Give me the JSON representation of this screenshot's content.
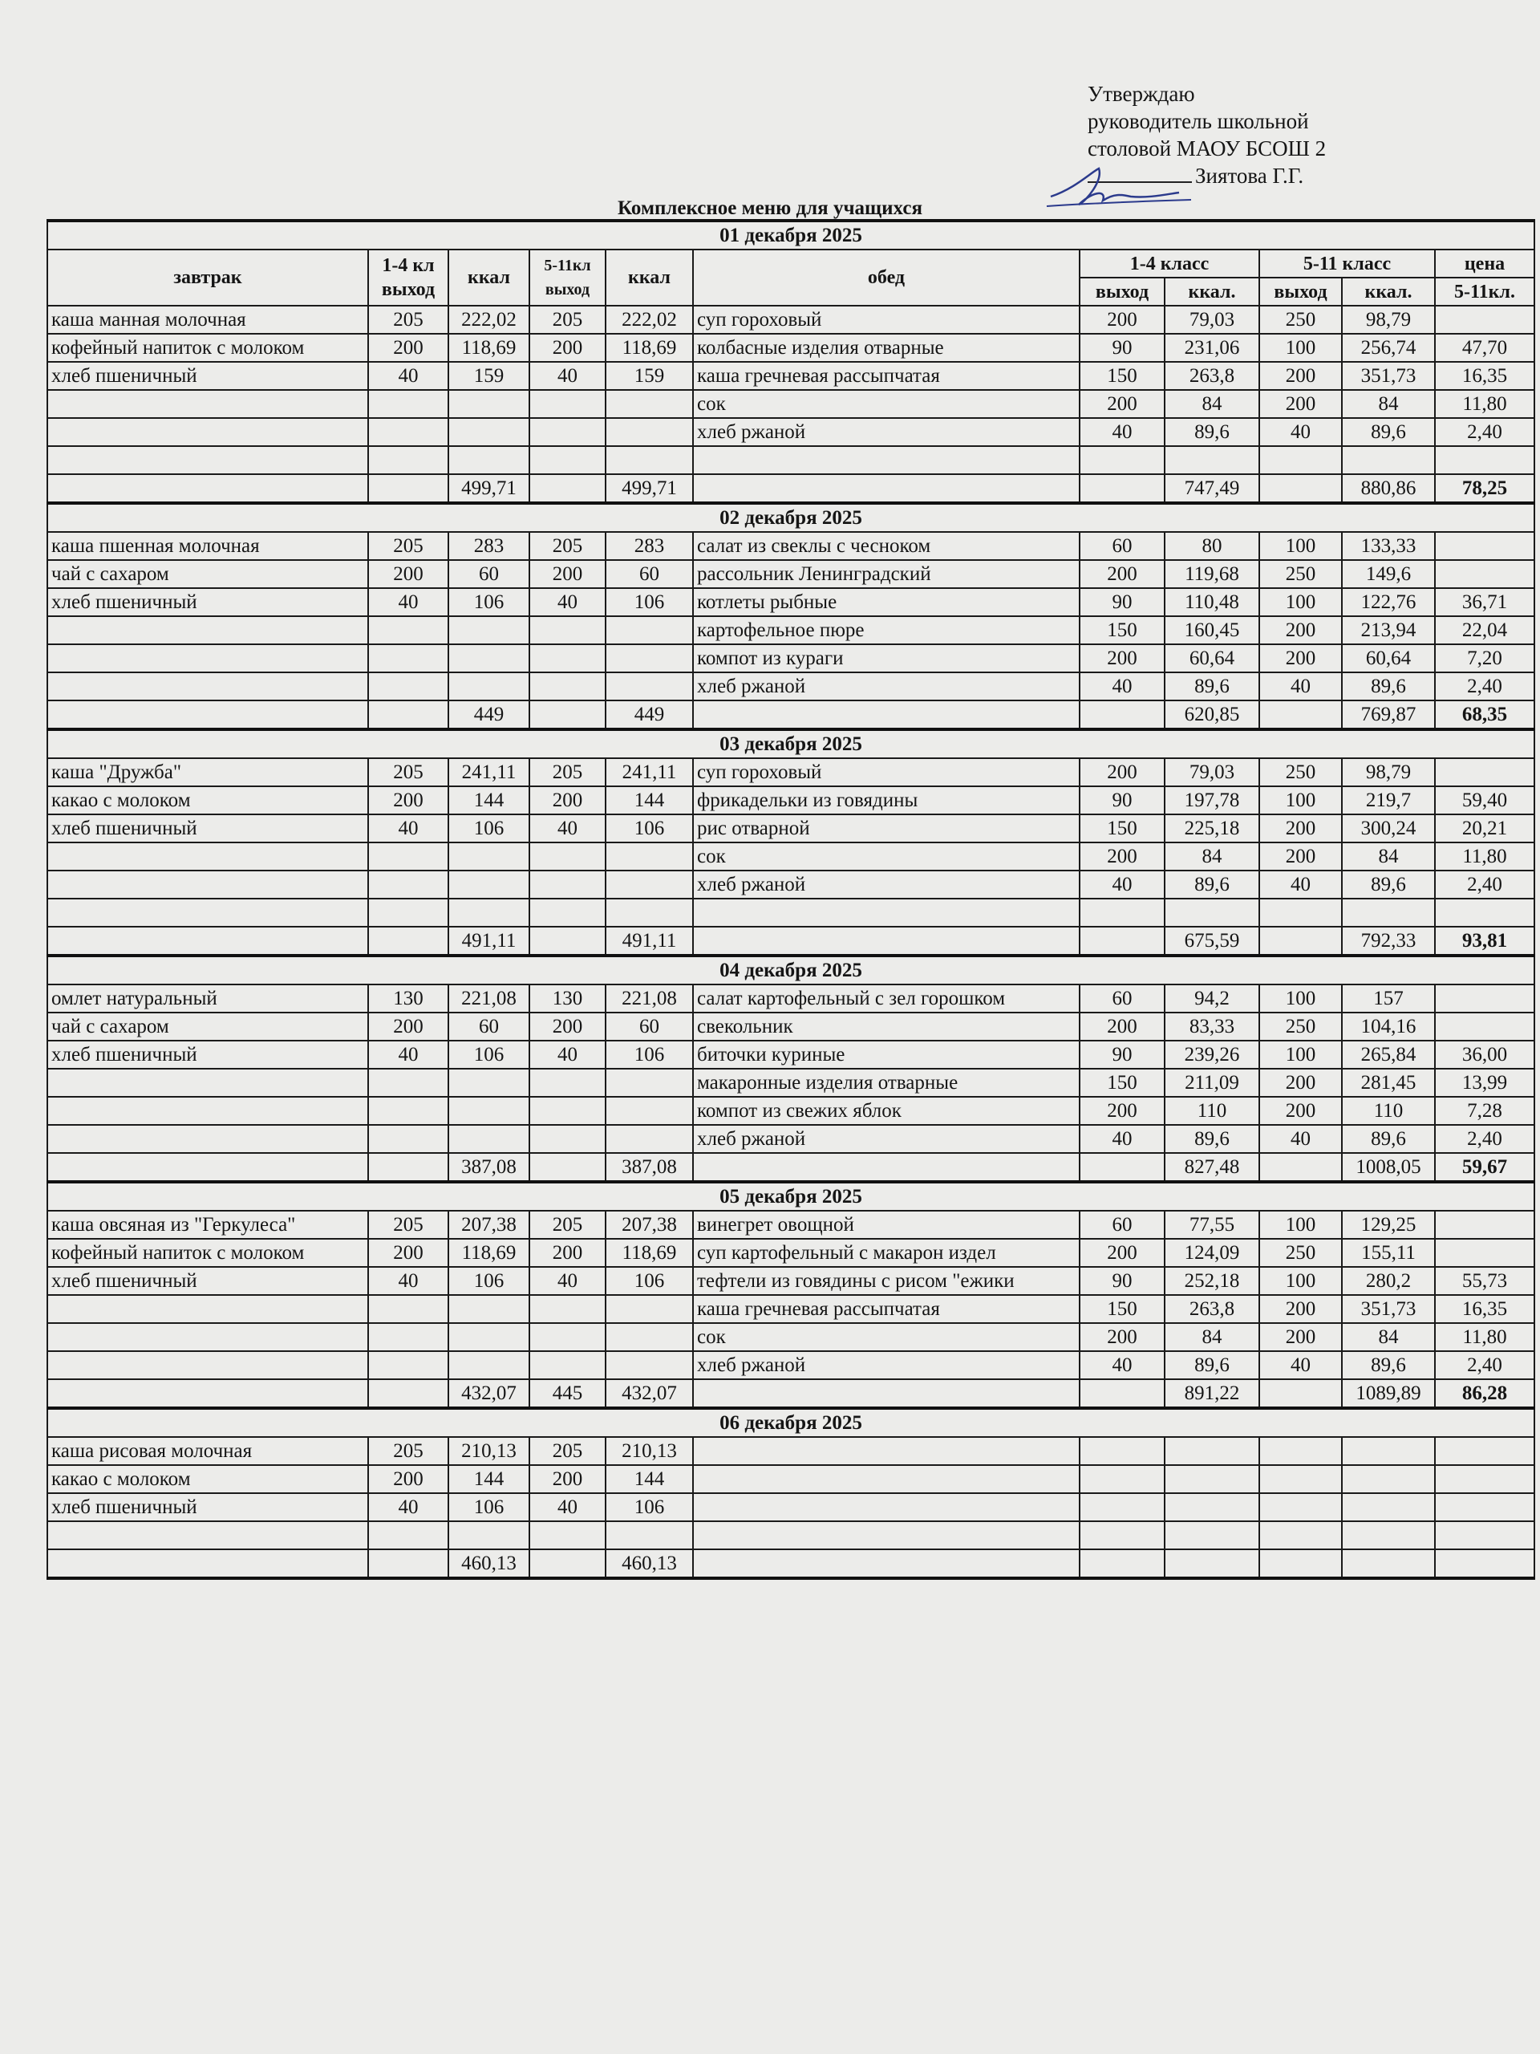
{
  "approval": {
    "line1": "Утверждаю",
    "line2": "руководитель школьной",
    "line3": "столовой МАОУ БСОШ 2",
    "name": "Зиятова Г.Г."
  },
  "title": "Комплексное меню для учащихся",
  "header": {
    "breakfast": "завтрак",
    "out_1_4_a": "1-4 кл",
    "out_1_4_b": "выход",
    "kcal_a": "ккал",
    "out_5_11_a": "5-11кл",
    "out_5_11_b": "выход",
    "kcal_b": "ккал",
    "lunch": "обед",
    "grade_1_4": "1-4 класс",
    "grade_5_11": "5-11 класс",
    "price_a": "цена",
    "price_b": "5-11кл.",
    "out": "выход",
    "kcal": "ккал."
  },
  "days": [
    {
      "date": "01 декабря 2025",
      "breakfast": [
        {
          "name": "каша манная молочная",
          "out14": "205",
          "kcal14": "222,02",
          "out511": "205",
          "kcal511": "222,02"
        },
        {
          "name": "кофейный напиток с молоком",
          "out14": "200",
          "kcal14": "118,69",
          "out511": "200",
          "kcal511": "118,69"
        },
        {
          "name": "хлеб пшеничный",
          "out14": "40",
          "kcal14": "159",
          "out511": "40",
          "kcal511": "159"
        }
      ],
      "breakfast_total": {
        "kcal14": "499,71",
        "out511": "",
        "kcal511": "499,71"
      },
      "lunch": [
        {
          "name": "суп гороховый",
          "out14": "200",
          "kcal14": "79,03",
          "out511": "250",
          "kcal511": "98,79",
          "price": ""
        },
        {
          "name": "колбасные изделия отварные",
          "out14": "90",
          "kcal14": "231,06",
          "out511": "100",
          "kcal511": "256,74",
          "price": "47,70"
        },
        {
          "name": "каша гречневая рассыпчатая",
          "out14": "150",
          "kcal14": "263,8",
          "out511": "200",
          "kcal511": "351,73",
          "price": "16,35"
        },
        {
          "name": "сок",
          "out14": "200",
          "kcal14": "84",
          "out511": "200",
          "kcal511": "84",
          "price": "11,80"
        },
        {
          "name": "хлеб ржаной",
          "out14": "40",
          "kcal14": "89,6",
          "out511": "40",
          "kcal511": "89,6",
          "price": "2,40"
        }
      ],
      "lunch_total": {
        "kcal14": "747,49",
        "kcal511": "880,86",
        "price": "78,25"
      }
    },
    {
      "date": "02 декабря 2025",
      "breakfast": [
        {
          "name": "каша пшенная молочная",
          "out14": "205",
          "kcal14": "283",
          "out511": "205",
          "kcal511": "283"
        },
        {
          "name": "чай с сахаром",
          "out14": "200",
          "kcal14": "60",
          "out511": "200",
          "kcal511": "60"
        },
        {
          "name": "хлеб пшеничный",
          "out14": "40",
          "kcal14": "106",
          "out511": "40",
          "kcal511": "106"
        }
      ],
      "breakfast_total": {
        "kcal14": "449",
        "out511": "",
        "kcal511": "449"
      },
      "lunch": [
        {
          "name": "салат из свеклы с чесноком",
          "out14": "60",
          "kcal14": "80",
          "out511": "100",
          "kcal511": "133,33",
          "price": ""
        },
        {
          "name": "рассольник Ленинградский",
          "out14": "200",
          "kcal14": "119,68",
          "out511": "250",
          "kcal511": "149,6",
          "price": ""
        },
        {
          "name": "котлеты рыбные",
          "out14": "90",
          "kcal14": "110,48",
          "out511": "100",
          "kcal511": "122,76",
          "price": "36,71"
        },
        {
          "name": "картофельное пюре",
          "out14": "150",
          "kcal14": "160,45",
          "out511": "200",
          "kcal511": "213,94",
          "price": "22,04"
        },
        {
          "name": "компот из кураги",
          "out14": "200",
          "kcal14": "60,64",
          "out511": "200",
          "kcal511": "60,64",
          "price": "7,20"
        },
        {
          "name": "хлеб ржаной",
          "out14": "40",
          "kcal14": "89,6",
          "out511": "40",
          "kcal511": "89,6",
          "price": "2,40"
        }
      ],
      "lunch_total": {
        "kcal14": "620,85",
        "kcal511": "769,87",
        "price": "68,35"
      }
    },
    {
      "date": "03 декабря 2025",
      "breakfast": [
        {
          "name": "каша \"Дружба\"",
          "out14": "205",
          "kcal14": "241,11",
          "out511": "205",
          "kcal511": "241,11"
        },
        {
          "name": "какао с молоком",
          "out14": "200",
          "kcal14": "144",
          "out511": "200",
          "kcal511": "144"
        },
        {
          "name": "хлеб пшеничный",
          "out14": "40",
          "kcal14": "106",
          "out511": "40",
          "kcal511": "106"
        }
      ],
      "breakfast_total": {
        "kcal14": "491,11",
        "out511": "",
        "kcal511": "491,11"
      },
      "lunch": [
        {
          "name": "суп гороховый",
          "out14": "200",
          "kcal14": "79,03",
          "out511": "250",
          "kcal511": "98,79",
          "price": ""
        },
        {
          "name": "фрикадельки из говядины",
          "out14": "90",
          "kcal14": "197,78",
          "out511": "100",
          "kcal511": "219,7",
          "price": "59,40"
        },
        {
          "name": "рис отварной",
          "out14": "150",
          "kcal14": "225,18",
          "out511": "200",
          "kcal511": "300,24",
          "price": "20,21"
        },
        {
          "name": "сок",
          "out14": "200",
          "kcal14": "84",
          "out511": "200",
          "kcal511": "84",
          "price": "11,80"
        },
        {
          "name": "хлеб ржаной",
          "out14": "40",
          "kcal14": "89,6",
          "out511": "40",
          "kcal511": "89,6",
          "price": "2,40"
        }
      ],
      "lunch_total": {
        "kcal14": "675,59",
        "kcal511": "792,33",
        "price": "93,81"
      }
    },
    {
      "date": "04 декабря 2025",
      "breakfast": [
        {
          "name": "омлет натуральный",
          "out14": "130",
          "kcal14": "221,08",
          "out511": "130",
          "kcal511": "221,08"
        },
        {
          "name": "чай с сахаром",
          "out14": "200",
          "kcal14": "60",
          "out511": "200",
          "kcal511": "60"
        },
        {
          "name": "хлеб пшеничный",
          "out14": "40",
          "kcal14": "106",
          "out511": "40",
          "kcal511": "106"
        }
      ],
      "breakfast_total": {
        "kcal14": "387,08",
        "out511": "",
        "kcal511": "387,08"
      },
      "lunch": [
        {
          "name": "салат картофельный с зел горошком",
          "out14": "60",
          "kcal14": "94,2",
          "out511": "100",
          "kcal511": "157",
          "price": ""
        },
        {
          "name": "свекольник",
          "out14": "200",
          "kcal14": "83,33",
          "out511": "250",
          "kcal511": "104,16",
          "price": ""
        },
        {
          "name": "биточки куриные",
          "out14": "90",
          "kcal14": "239,26",
          "out511": "100",
          "kcal511": "265,84",
          "price": "36,00"
        },
        {
          "name": "макаронные изделия отварные",
          "out14": "150",
          "kcal14": "211,09",
          "out511": "200",
          "kcal511": "281,45",
          "price": "13,99"
        },
        {
          "name": "компот из свежих яблок",
          "out14": "200",
          "kcal14": "110",
          "out511": "200",
          "kcal511": "110",
          "price": "7,28"
        },
        {
          "name": "хлеб ржаной",
          "out14": "40",
          "kcal14": "89,6",
          "out511": "40",
          "kcal511": "89,6",
          "price": "2,40"
        }
      ],
      "lunch_total": {
        "kcal14": "827,48",
        "kcal511": "1008,05",
        "price": "59,67"
      }
    },
    {
      "date": "05 декабря 2025",
      "breakfast": [
        {
          "name": "каша овсяная из \"Геркулеса\"",
          "out14": "205",
          "kcal14": "207,38",
          "out511": "205",
          "kcal511": "207,38"
        },
        {
          "name": "кофейный напиток с молоком",
          "out14": "200",
          "kcal14": "118,69",
          "out511": "200",
          "kcal511": "118,69"
        },
        {
          "name": "хлеб пшеничный",
          "out14": "40",
          "kcal14": "106",
          "out511": "40",
          "kcal511": "106"
        }
      ],
      "breakfast_total": {
        "kcal14": "432,07",
        "out511": "445",
        "kcal511": "432,07"
      },
      "lunch": [
        {
          "name": "винегрет овощной",
          "out14": "60",
          "kcal14": "77,55",
          "out511": "100",
          "kcal511": "129,25",
          "price": ""
        },
        {
          "name": "суп картофельный с макарон издел",
          "out14": "200",
          "kcal14": "124,09",
          "out511": "250",
          "kcal511": "155,11",
          "price": ""
        },
        {
          "name": "тефтели из говядины с рисом \"ежики",
          "out14": "90",
          "kcal14": "252,18",
          "out511": "100",
          "kcal511": "280,2",
          "price": "55,73"
        },
        {
          "name": "каша гречневая рассыпчатая",
          "out14": "150",
          "kcal14": "263,8",
          "out511": "200",
          "kcal511": "351,73",
          "price": "16,35"
        },
        {
          "name": "сок",
          "out14": "200",
          "kcal14": "84",
          "out511": "200",
          "kcal511": "84",
          "price": "11,80"
        },
        {
          "name": "хлеб ржаной",
          "out14": "40",
          "kcal14": "89,6",
          "out511": "40",
          "kcal511": "89,6",
          "price": "2,40"
        }
      ],
      "lunch_total": {
        "kcal14": "891,22",
        "kcal511": "1089,89",
        "price": "86,28"
      }
    },
    {
      "date": "06 декабря 2025",
      "breakfast": [
        {
          "name": "каша рисовая молочная",
          "out14": "205",
          "kcal14": "210,13",
          "out511": "205",
          "kcal511": "210,13"
        },
        {
          "name": "какао с молоком",
          "out14": "200",
          "kcal14": "144",
          "out511": "200",
          "kcal511": "144"
        },
        {
          "name": "хлеб пшеничный",
          "out14": "40",
          "kcal14": "106",
          "out511": "40",
          "kcal511": "106"
        }
      ],
      "breakfast_total": {
        "kcal14": "460,13",
        "out511": "",
        "kcal511": "460,13"
      },
      "lunch": [],
      "lunch_total": {
        "kcal14": "",
        "kcal511": "",
        "price": ""
      }
    }
  ]
}
